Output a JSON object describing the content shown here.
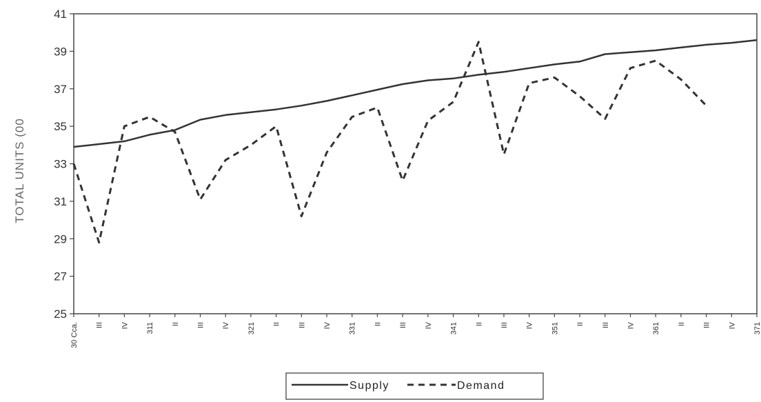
{
  "chart_data": {
    "type": "line",
    "title": "",
    "xlabel": "",
    "ylabel": "TOTAL UNITS (00",
    "ylim": [
      25,
      41
    ],
    "yticks": [
      25,
      27,
      29,
      31,
      33,
      35,
      37,
      39,
      41
    ],
    "categories": [
      "30 Cca.",
      "III",
      "IV",
      "311",
      "II",
      "III",
      "IV",
      "321",
      "II",
      "III",
      "IV",
      "331",
      "II",
      "III",
      "IV",
      "341",
      "II",
      "III",
      "IV",
      "351",
      "II",
      "III",
      "IV",
      "361",
      "II",
      "III",
      "IV",
      "371"
    ],
    "series": [
      {
        "name": "Supply",
        "style": "solid",
        "values": [
          33.9,
          34.05,
          34.2,
          34.55,
          34.8,
          35.35,
          35.6,
          35.75,
          35.9,
          36.1,
          36.35,
          36.65,
          36.95,
          37.25,
          37.45,
          37.55,
          37.75,
          37.9,
          38.1,
          38.3,
          38.45,
          38.85,
          38.95,
          39.05,
          39.2,
          39.35,
          39.45,
          39.6
        ]
      },
      {
        "name": "Demand",
        "style": "dashed",
        "values": [
          33.0,
          28.8,
          35.0,
          35.5,
          34.7,
          31.1,
          33.2,
          34.0,
          35.0,
          30.2,
          33.6,
          35.5,
          36.0,
          32.1,
          35.3,
          36.3,
          39.5,
          33.5,
          37.3,
          37.6,
          36.6,
          35.4,
          38.1,
          38.5,
          37.5,
          36.1,
          null,
          null
        ]
      }
    ],
    "grid": false,
    "legend": "bottom-center",
    "colors": {
      "line": "#333333",
      "axis": "#444444"
    }
  }
}
